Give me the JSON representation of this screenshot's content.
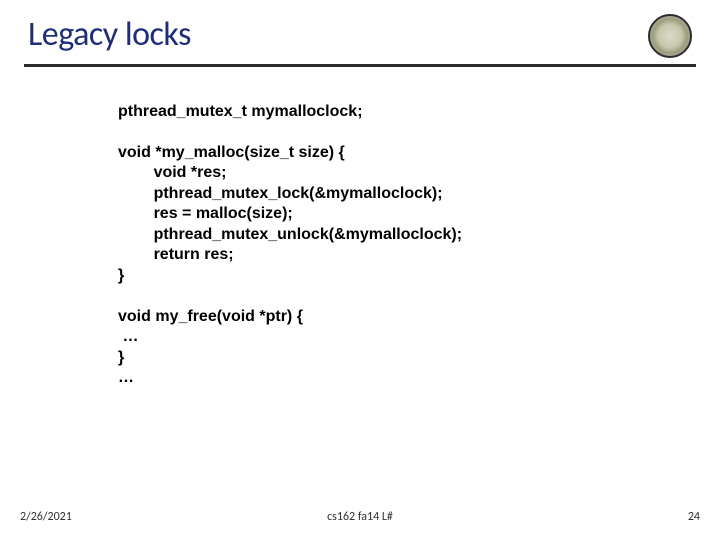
{
  "title": {
    "text": "Legacy locks",
    "color": "#1f2e79",
    "fontsize": 34
  },
  "divider_color": "#2b2b2b",
  "code": {
    "lines": [
      "pthread_mutex_t mymalloclock;",
      "",
      "void *my_malloc(size_t size) {",
      "        void *res;",
      "        pthread_mutex_lock(&mymalloclock);",
      "        res = malloc(size);",
      "        pthread_mutex_unlock(&mymalloclock);",
      "        return res;",
      "}",
      "",
      "void my_free(void *ptr) {",
      " …",
      "}",
      "…"
    ],
    "fontsize": 16,
    "fontweight": "bold",
    "color": "#000000"
  },
  "footer": {
    "date": "2/26/2021",
    "center": "cs162 fa14 L#",
    "page": "24",
    "fontsize": 12,
    "color": "#303030"
  }
}
